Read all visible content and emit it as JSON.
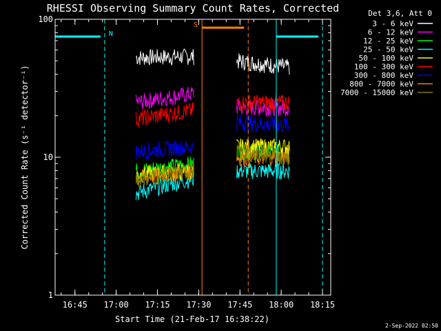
{
  "chart_data": {
    "type": "line",
    "title": "RHESSI Observing Summary Count Rates, Corrected",
    "xlabel": "Start Time (21-Feb-17 16:38:22)",
    "ylabel": "Corrected Count Rate (s⁻¹ detector⁻¹)",
    "ylog": true,
    "ylim": [
      1,
      100
    ],
    "xlim_minutes": [
      16.63,
      18.3
    ],
    "x_ticks": [
      "16:45",
      "17:00",
      "17:15",
      "17:30",
      "17:45",
      "18:00",
      "18:15"
    ],
    "x_tick_minutes": [
      16.75,
      17.0,
      17.25,
      17.5,
      17.75,
      18.0,
      18.25
    ],
    "y_ticks": [
      "1",
      "10",
      "100"
    ],
    "y_tick_values": [
      1,
      10,
      100
    ],
    "legend_header": "Det 3,6, Att 0",
    "legend_placement": "top-right outside",
    "series": [
      {
        "name": "3 - 6 keV",
        "color": "#ffffff",
        "seg1": [
          53,
          54
        ],
        "seg2": [
          50,
          45
        ]
      },
      {
        "name": "6 - 12 keV",
        "color": "#ff00ff",
        "seg1": [
          25,
          29
        ],
        "seg2": [
          23,
          23
        ]
      },
      {
        "name": "12 - 25 keV",
        "color": "#00ff00",
        "seg1": [
          8,
          9
        ],
        "seg2": [
          11,
          11
        ]
      },
      {
        "name": "25 - 50 keV",
        "color": "#00ffff",
        "seg1": [
          5.5,
          7
        ],
        "seg2": [
          8,
          8
        ]
      },
      {
        "name": "50 - 100 keV",
        "color": "#ffff00",
        "seg1": [
          7.5,
          8
        ],
        "seg2": [
          12,
          12
        ]
      },
      {
        "name": "100 - 300 keV",
        "color": "#ff0000",
        "seg1": [
          19,
          22
        ],
        "seg2": [
          25,
          25
        ]
      },
      {
        "name": "300 - 800 keV",
        "color": "#0000ff",
        "seg1": [
          11,
          12
        ],
        "seg2": [
          18,
          17
        ]
      },
      {
        "name": "800 - 7000 keV",
        "color": "#ff8000",
        "seg1": [
          7,
          8
        ],
        "seg2": [
          10,
          10
        ]
      },
      {
        "name": "7000 - 15000 keV",
        "color": "#808000",
        "seg1": [
          7,
          8
        ],
        "seg2": [
          11,
          10
        ]
      }
    ],
    "segments_minutes": [
      [
        17.12,
        17.47
      ],
      [
        17.73,
        18.05
      ]
    ],
    "flags": [
      {
        "label": "N",
        "color": "#00ffff",
        "level": 75,
        "start": 16.63,
        "end": 16.93,
        "line_solid": 16.63,
        "line_dashed": 16.93
      },
      {
        "label": "S",
        "color": "#ff8000",
        "level": 87,
        "start": 17.52,
        "end": 17.8,
        "line_solid": 17.52,
        "line_dashed": 17.8
      },
      {
        "label": "",
        "color": "#00ffff",
        "level": 75,
        "start": 17.97,
        "end": 18.25,
        "line_solid": 17.97,
        "line_dashed": 18.25
      }
    ]
  },
  "footer": {
    "date_stamp": "2-Sep-2022 02:50"
  }
}
